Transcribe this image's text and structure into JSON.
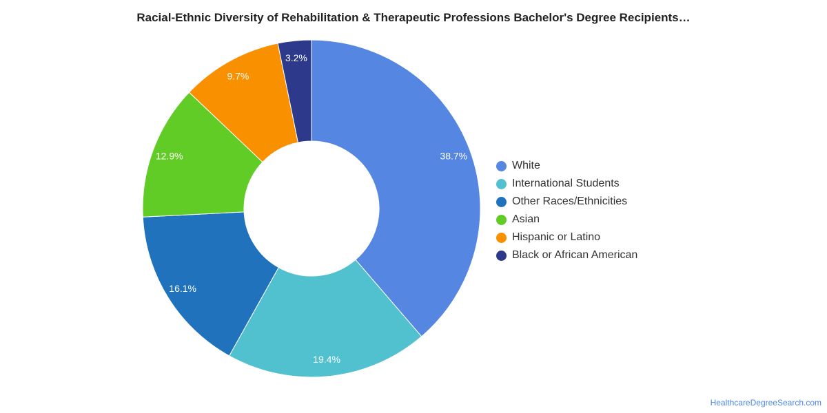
{
  "chart_data": {
    "type": "pie",
    "title": "Racial-Ethnic Diversity of Rehabilitation & Therapeutic Professions Bachelor's Degree Recipients…",
    "hole": true,
    "legend_position": "right",
    "slices": [
      {
        "name": "White",
        "value": 38.7,
        "label": "38.7%",
        "color": "#5486e2"
      },
      {
        "name": "International Students",
        "value": 19.4,
        "label": "19.4%",
        "color": "#52c1cf"
      },
      {
        "name": "Other Races/Ethnicities",
        "value": 16.1,
        "label": "16.1%",
        "color": "#1f72bb"
      },
      {
        "name": "Asian",
        "value": 12.9,
        "label": "12.9%",
        "color": "#62cc27"
      },
      {
        "name": "Hispanic or Latino",
        "value": 9.7,
        "label": "9.7%",
        "color": "#f99000"
      },
      {
        "name": "Black or African American",
        "value": 3.2,
        "label": "3.2%",
        "color": "#2d3a8c"
      }
    ]
  },
  "credit": "HealthcareDegreeSearch.com"
}
